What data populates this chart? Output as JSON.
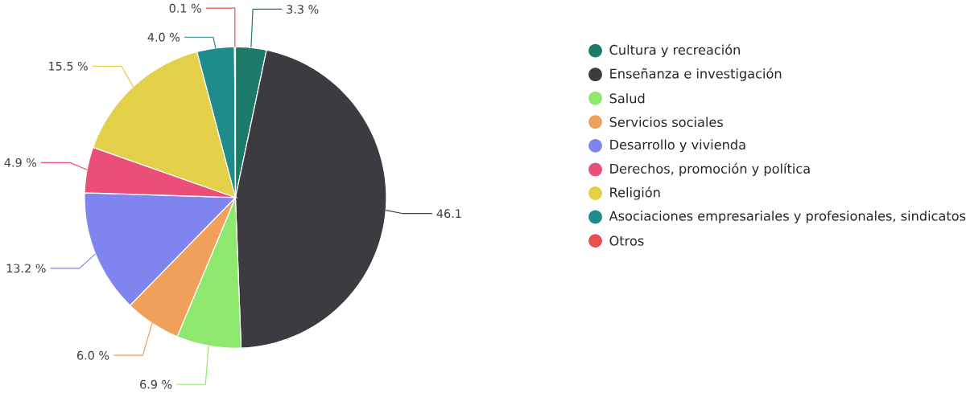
{
  "chart_data": {
    "type": "pie",
    "categories": [
      "Cultura y recreación",
      "Enseñanza e investigación",
      "Salud",
      "Servicios sociales",
      "Desarrollo y vivienda",
      "Derechos, promoción y política",
      "Religión",
      "Asociaciones empresariales y profesionales, sindicatos",
      "Otros"
    ],
    "values": [
      3.3,
      46.1,
      6.9,
      6.0,
      13.2,
      4.9,
      15.5,
      4.0,
      0.1
    ],
    "colors": [
      "#1b7a6a",
      "#3c3b40",
      "#8ee86e",
      "#f0a05a",
      "#7f84ee",
      "#ea4f78",
      "#e3cf48",
      "#1f8b8b",
      "#ea4f4f"
    ],
    "value_labels": [
      "3.3 %",
      "46.1",
      "6.9 %",
      "6.0 %",
      "13.2 %",
      "4.9 %",
      "15.5 %",
      "4.0 %",
      "0.1 %"
    ],
    "legend": "right"
  }
}
